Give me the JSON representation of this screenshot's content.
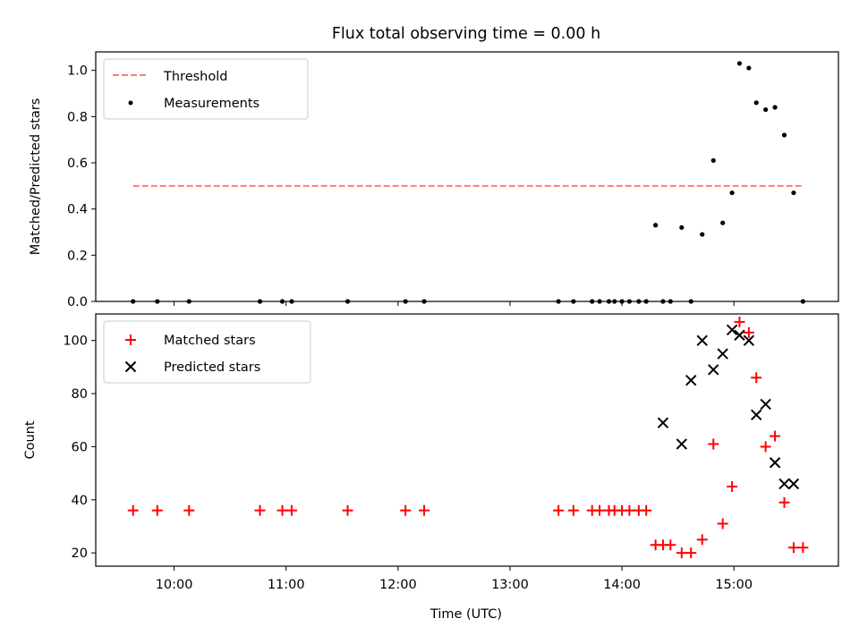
{
  "title": "Flux total observing time = 0.00 h",
  "chart_data": [
    {
      "type": "scatter",
      "ylabel": "Matched/Predicted stars",
      "xlabel": "",
      "ylim": [
        0.0,
        1.08
      ],
      "yticks": [
        0.0,
        0.2,
        0.4,
        0.6,
        0.8,
        1.0
      ],
      "ytick_labels": [
        "0.0",
        "0.2",
        "0.4",
        "0.6",
        "0.8",
        "1.0"
      ],
      "xlim": [
        "09:18",
        "15:56"
      ],
      "xticks": [
        "10:00",
        "11:00",
        "12:00",
        "13:00",
        "14:00",
        "15:00"
      ],
      "legend_placement": "top-left",
      "grid": false,
      "threshold": {
        "name": "Threshold",
        "y": 0.5,
        "x_start": "09:38",
        "x_end": "15:37",
        "color": "#ff7b7b",
        "style": "dashed"
      },
      "series": [
        {
          "name": "Measurements",
          "color": "#000000",
          "marker": "dot",
          "x": [
            "09:38",
            "09:51",
            "10:08",
            "10:46",
            "10:58",
            "11:03",
            "11:33",
            "12:04",
            "12:14",
            "13:26",
            "13:34",
            "13:44",
            "13:48",
            "13:53",
            "13:56",
            "14:00",
            "14:04",
            "14:09",
            "14:13",
            "14:18",
            "14:22",
            "14:26",
            "14:32",
            "14:37",
            "14:43",
            "14:49",
            "14:54",
            "14:59",
            "15:03",
            "15:08",
            "15:12",
            "15:17",
            "15:22",
            "15:27",
            "15:32",
            "15:37"
          ],
          "y": [
            0,
            0,
            0,
            0,
            0,
            0,
            0,
            0,
            0,
            0,
            0,
            0,
            0,
            0,
            0,
            0,
            0,
            0,
            0,
            0.33,
            0,
            0,
            0.32,
            0,
            0.29,
            0.61,
            0.34,
            0.47,
            1.03,
            1.01,
            0.86,
            0.83,
            0.84,
            0.72,
            0.47,
            0
          ]
        }
      ]
    },
    {
      "type": "scatter",
      "ylabel": "Count",
      "xlabel": "Time (UTC)",
      "ylim": [
        15.0,
        110.0
      ],
      "yticks": [
        20,
        40,
        60,
        80,
        100
      ],
      "ytick_labels": [
        "20",
        "40",
        "60",
        "80",
        "100"
      ],
      "xlim": [
        "09:18",
        "15:56"
      ],
      "xticks": [
        "10:00",
        "11:00",
        "12:00",
        "13:00",
        "14:00",
        "15:00"
      ],
      "xtick_labels": [
        "10:00",
        "11:00",
        "12:00",
        "13:00",
        "14:00",
        "15:00"
      ],
      "legend_placement": "top-left",
      "grid": false,
      "series": [
        {
          "name": "Matched stars",
          "color": "#ff0000",
          "marker": "plus",
          "x": [
            "09:38",
            "09:51",
            "10:08",
            "10:46",
            "10:58",
            "11:03",
            "11:33",
            "12:04",
            "12:14",
            "13:26",
            "13:34",
            "13:44",
            "13:48",
            "13:53",
            "13:56",
            "14:00",
            "14:04",
            "14:09",
            "14:13",
            "14:18",
            "14:22",
            "14:26",
            "14:32",
            "14:37",
            "14:43",
            "14:49",
            "14:54",
            "14:59",
            "15:03",
            "15:08",
            "15:12",
            "15:17",
            "15:22",
            "15:27",
            "15:32",
            "15:37"
          ],
          "y": [
            36,
            36,
            36,
            36,
            36,
            36,
            36,
            36,
            36,
            36,
            36,
            36,
            36,
            36,
            36,
            36,
            36,
            36,
            36,
            23,
            23,
            23,
            20,
            20,
            25,
            61,
            31,
            45,
            107,
            103,
            86,
            60,
            64,
            39,
            22,
            22
          ]
        },
        {
          "name": "Predicted stars",
          "color": "#000000",
          "marker": "x",
          "x": [
            "14:22",
            "14:32",
            "14:37",
            "14:43",
            "14:49",
            "14:54",
            "14:59",
            "15:03",
            "15:08",
            "15:12",
            "15:17",
            "15:22",
            "15:27",
            "15:32"
          ],
          "y": [
            69,
            61,
            85,
            100,
            89,
            95,
            104,
            102,
            100,
            72,
            76,
            54,
            46,
            46
          ]
        }
      ]
    }
  ]
}
